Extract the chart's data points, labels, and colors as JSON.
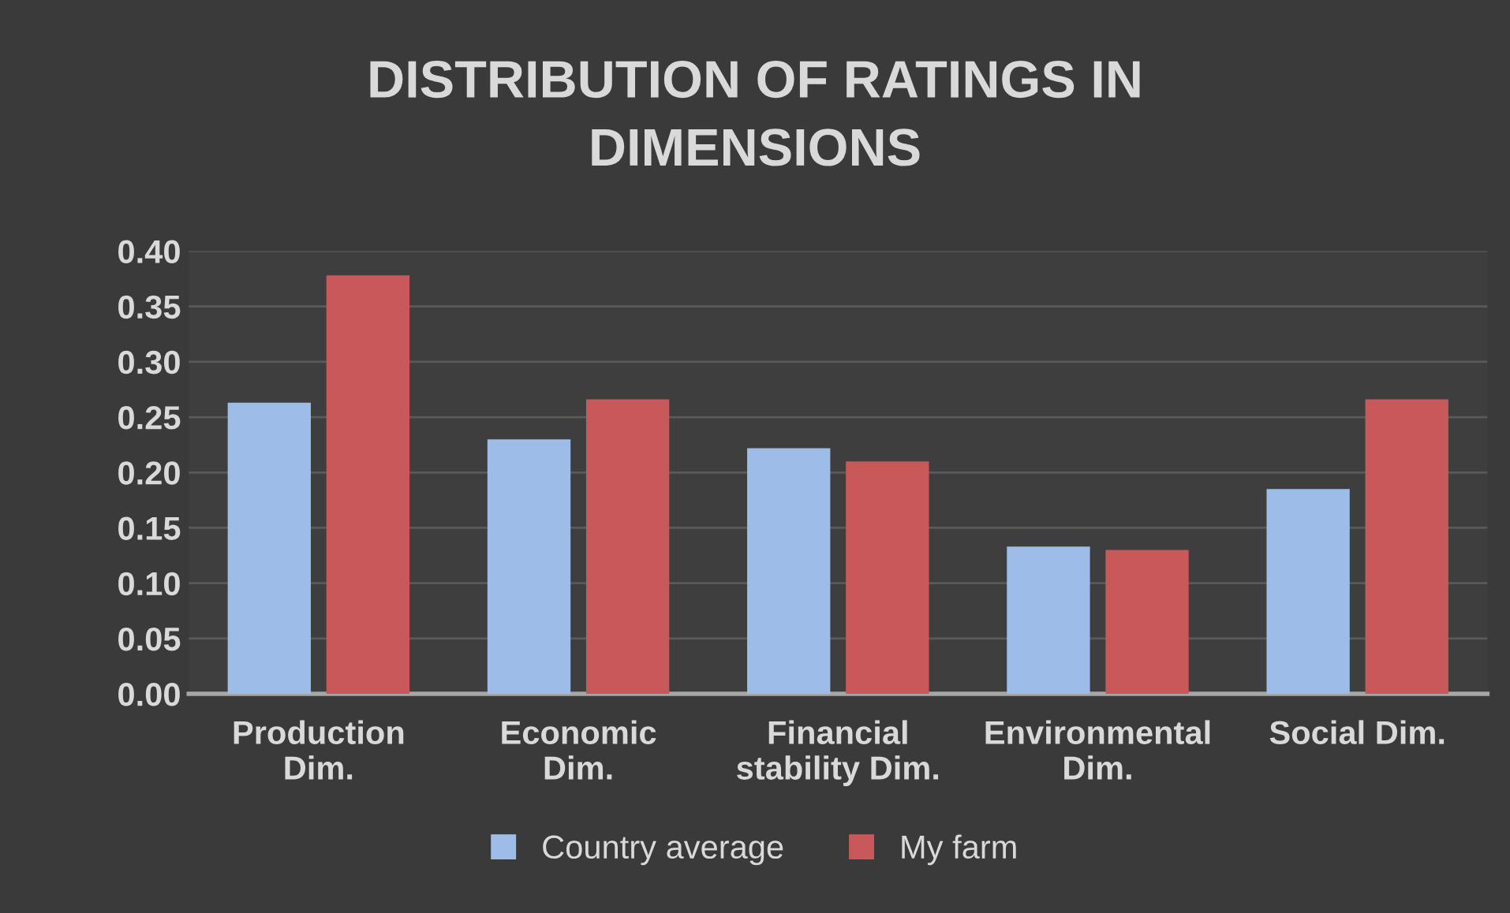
{
  "chart_data": {
    "type": "bar",
    "title": "DISTRIBUTION OF RATINGS IN\nDIMENSIONS",
    "categories": [
      "Production\nDim.",
      "Economic\nDim.",
      "Financial\nstability Dim.",
      "Environmental\nDim.",
      "Social Dim."
    ],
    "series": [
      {
        "name": "Country average",
        "color": "#9dbde8",
        "values": [
          0.263,
          0.23,
          0.222,
          0.133,
          0.185
        ]
      },
      {
        "name": "My farm",
        "color": "#c9585a",
        "values": [
          0.378,
          0.266,
          0.21,
          0.13,
          0.266
        ]
      }
    ],
    "ylim": [
      0,
      0.4
    ],
    "yticks": [
      {
        "value": 0,
        "label": "0.00"
      },
      {
        "value": 0.05,
        "label": "0.05"
      },
      {
        "value": 0.1,
        "label": "0.10"
      },
      {
        "value": 0.15,
        "label": "0.15"
      },
      {
        "value": 0.2,
        "label": "0.20"
      },
      {
        "value": 0.25,
        "label": "0.25"
      },
      {
        "value": 0.3,
        "label": "0.30"
      },
      {
        "value": 0.35,
        "label": "0.35"
      },
      {
        "value": 0.4,
        "label": "0.40"
      }
    ],
    "grid": "y",
    "legend": "bottom"
  }
}
